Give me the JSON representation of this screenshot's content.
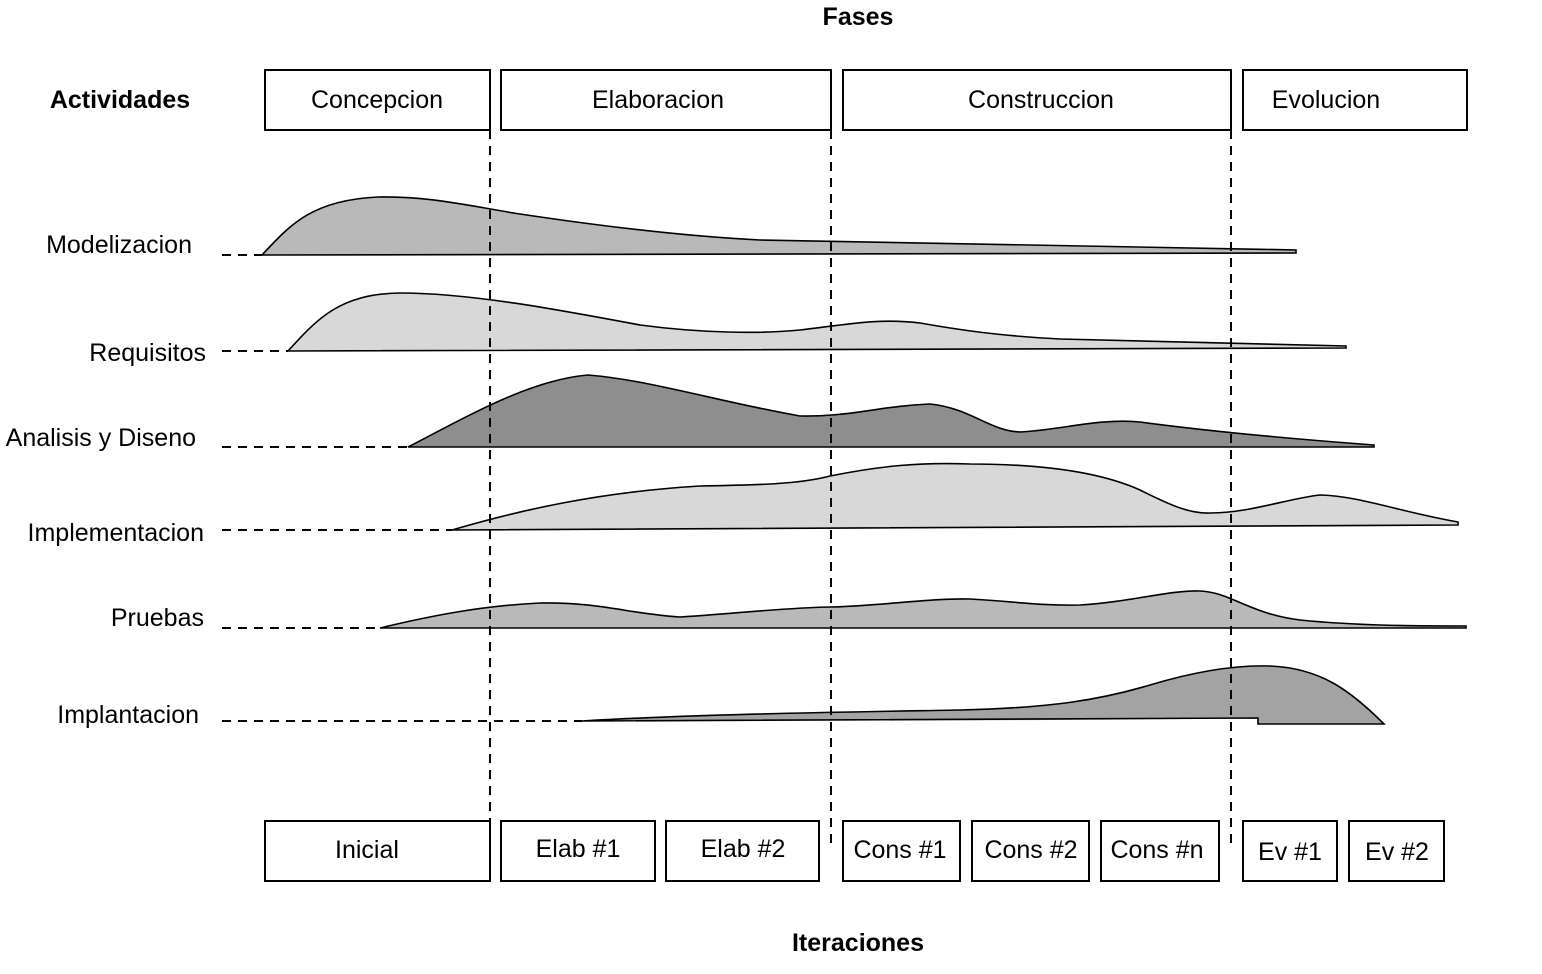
{
  "title_top": "Fases",
  "title_bottom": "Iteraciones",
  "activities_header": "Actividades",
  "phases": [
    "Concepcion",
    "Elaboracion",
    "Construccion",
    "Evolucion"
  ],
  "activities": [
    {
      "label": "Modelizacion",
      "fill": "#b9b9b9"
    },
    {
      "label": "Requisitos",
      "fill": "#d8d8d8"
    },
    {
      "label": "Analisis y Diseno",
      "fill": "#8e8e8e"
    },
    {
      "label": "Implementacion",
      "fill": "#d8d8d8"
    },
    {
      "label": "Pruebas",
      "fill": "#b9b9b9"
    },
    {
      "label": "Implantacion",
      "fill": "#a3a3a3"
    }
  ],
  "iterations": [
    "Inicial",
    "Elab #1",
    "Elab #2",
    "Cons #1",
    "Cons #2",
    "Cons #n",
    "Ev #1",
    "Ev #2"
  ],
  "colors": {
    "line": "#000000",
    "background": "#ffffff"
  }
}
